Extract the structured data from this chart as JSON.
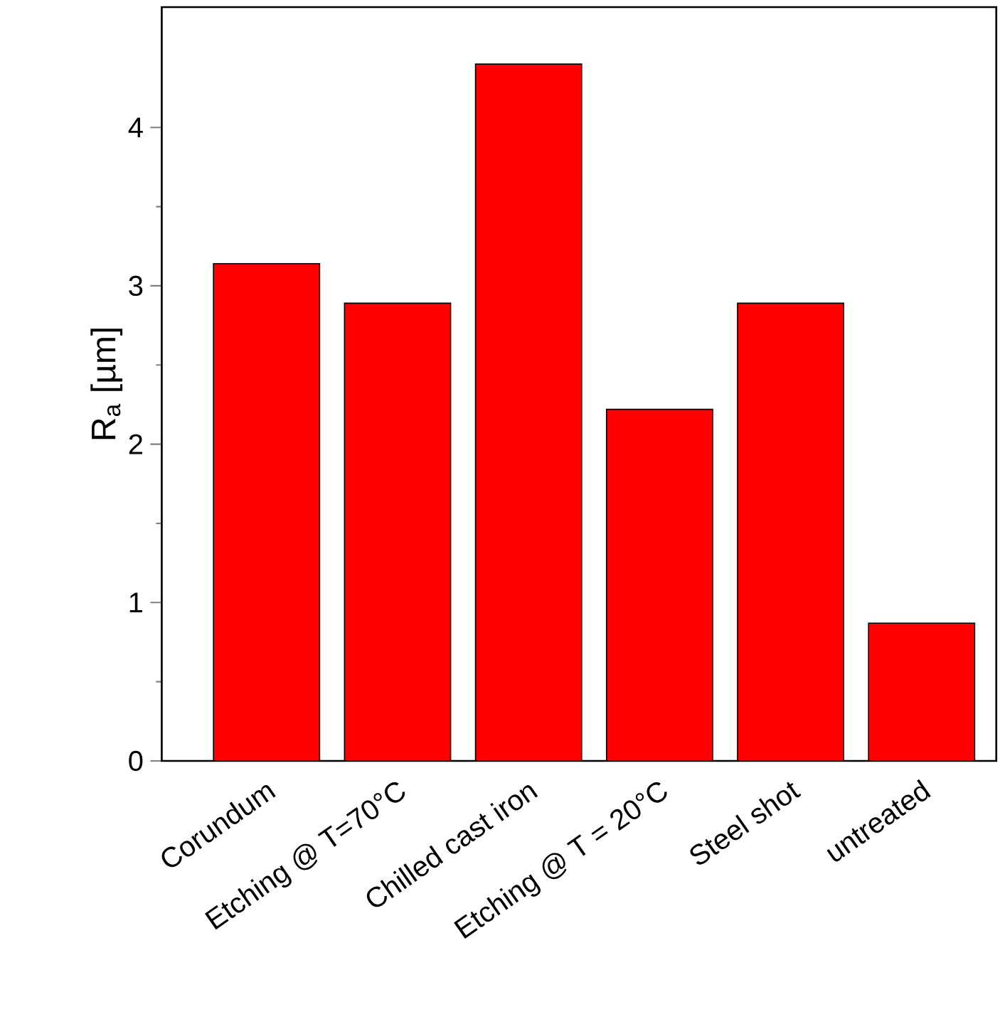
{
  "chart_data": {
    "type": "bar",
    "ylabel": "R$_{a}$ [µm]",
    "categories": [
      "Corundum",
      "Etching @ T=70°C",
      "Chilled cast iron",
      "Etching @ T = 20°C",
      "Steel shot",
      "untreated"
    ],
    "values": [
      3.14,
      2.89,
      4.4,
      2.22,
      2.89,
      0.87
    ],
    "color": "#ff0000",
    "ylim": [
      0,
      4.76
    ],
    "yticks": [
      0,
      1,
      2,
      3,
      4
    ]
  }
}
